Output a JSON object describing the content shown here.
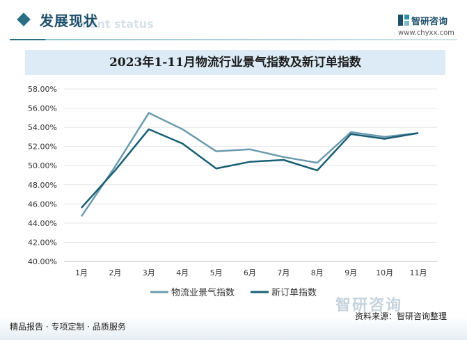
{
  "header": {
    "section_title": "发展现状",
    "section_subtitle": "ment status",
    "brand_name": "智研咨询",
    "brand_url": "www.chyxx.com"
  },
  "chart_data": {
    "type": "line",
    "title": "2023年1-11月物流行业景气指数及新订单指数",
    "categories": [
      "1月",
      "2月",
      "3月",
      "4月",
      "5月",
      "6月",
      "7月",
      "8月",
      "9月",
      "10月",
      "11月"
    ],
    "series": [
      {
        "name": "物流业景气指数",
        "color": "#6b9aae",
        "values": [
          44.7,
          49.9,
          55.5,
          53.8,
          51.5,
          51.7,
          50.9,
          50.3,
          53.5,
          53.0,
          53.4
        ]
      },
      {
        "name": "新订单指数",
        "color": "#175e73",
        "values": [
          45.6,
          49.5,
          53.8,
          52.3,
          49.7,
          50.4,
          50.6,
          49.5,
          53.3,
          52.8,
          53.4
        ]
      }
    ],
    "ylim": [
      40,
      58
    ],
    "yticks": [
      "40.00%",
      "42.00%",
      "44.00%",
      "46.00%",
      "48.00%",
      "50.00%",
      "52.00%",
      "54.00%",
      "56.00%",
      "58.00%"
    ],
    "ytick_values": [
      40,
      42,
      44,
      46,
      48,
      50,
      52,
      54,
      56,
      58
    ],
    "grid": true,
    "legend_position": "bottom"
  },
  "footer": {
    "source": "资料来源：智研咨询整理",
    "tagline": "精品报告 · 专项定制 · 品质服务",
    "watermark": "智研咨询"
  }
}
